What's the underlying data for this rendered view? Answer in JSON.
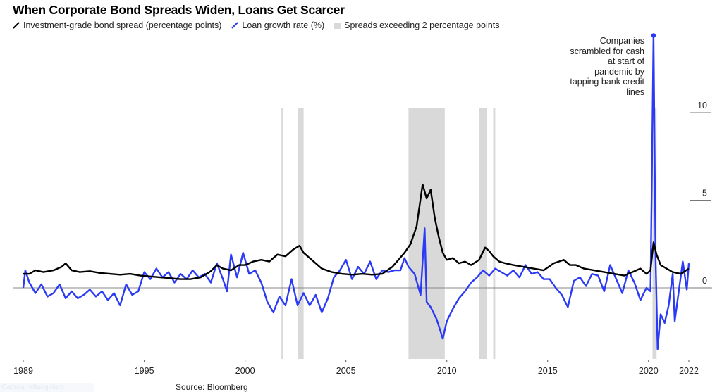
{
  "title": "When Corporate Bond Spreads Widen, Loans Get Scarcer",
  "legend": [
    {
      "label": "Investment-grade bond spread (percentage points)",
      "color": "#000000",
      "icon": "line-slash-icon"
    },
    {
      "label": "Loan growth rate (%)",
      "color": "#2b3af5",
      "icon": "line-slash-icon"
    },
    {
      "label": "Spreads exceeding 2 percentage points",
      "color": "#d9d9d9",
      "icon": "square-icon"
    }
  ],
  "annotation": "Companies scrambled for cash at start of pandemic by tapping bank credit lines",
  "source": "Source: Bloomberg",
  "overlay_label": "Cattura rettangolare",
  "colors": {
    "spread": "#000000",
    "loan": "#2b3af5",
    "band": "#d9d9d9",
    "zero_line": "#888888"
  },
  "axes": {
    "x_ticks": [
      "1989",
      "1995",
      "2000",
      "2005",
      "2010",
      "2015",
      "2020",
      "2022"
    ],
    "y_ticks": [
      "0",
      "5",
      "10"
    ]
  },
  "chart_data": {
    "type": "line",
    "title": "When Corporate Bond Spreads Widen, Loans Get Scarcer",
    "xlabel": "",
    "ylabel": "",
    "xlim": [
      1989,
      2022.2
    ],
    "ylim": [
      -3.6,
      14.6
    ],
    "grid": false,
    "legend_position": "top-left",
    "y_axis_side": "right",
    "x_ticks": [
      1989,
      1995,
      2000,
      2005,
      2010,
      2015,
      2020,
      2022
    ],
    "y_ticks": [
      0,
      5,
      10
    ],
    "shaded_periods": [
      {
        "start": 2001.8,
        "end": 2001.9
      },
      {
        "start": 2002.6,
        "end": 2002.9
      },
      {
        "start": 2008.1,
        "end": 2009.9
      },
      {
        "start": 2011.6,
        "end": 2012.0
      },
      {
        "start": 2012.3,
        "end": 2012.4
      },
      {
        "start": 2020.2,
        "end": 2020.4
      }
    ],
    "series": [
      {
        "name": "Investment-grade bond spread (percentage points)",
        "color": "#000000",
        "x": [
          1989.0,
          1989.3,
          1989.6,
          1990.0,
          1990.5,
          1990.9,
          1991.1,
          1991.4,
          1991.8,
          1992.3,
          1992.8,
          1993.3,
          1993.8,
          1994.3,
          1994.8,
          1995.3,
          1995.8,
          1996.3,
          1996.8,
          1997.3,
          1997.8,
          1998.3,
          1998.6,
          1998.9,
          1999.3,
          1999.7,
          2000.0,
          2000.4,
          2000.8,
          2001.2,
          2001.6,
          2002.0,
          2002.4,
          2002.7,
          2002.9,
          2003.3,
          2003.8,
          2004.3,
          2004.8,
          2005.3,
          2005.8,
          2006.3,
          2006.8,
          2007.3,
          2007.6,
          2007.9,
          2008.2,
          2008.5,
          2008.8,
          2009.0,
          2009.2,
          2009.4,
          2009.6,
          2009.8,
          2010.0,
          2010.3,
          2010.6,
          2010.9,
          2011.2,
          2011.6,
          2011.9,
          2012.1,
          2012.3,
          2012.6,
          2012.9,
          2013.3,
          2013.8,
          2014.3,
          2014.8,
          2015.3,
          2015.8,
          2016.1,
          2016.4,
          2016.8,
          2017.3,
          2017.8,
          2018.3,
          2018.8,
          2019.2,
          2019.6,
          2019.9,
          2020.1,
          2020.25,
          2020.4,
          2020.6,
          2020.9,
          2021.2,
          2021.6,
          2022.0
        ],
        "values": [
          0.8,
          0.8,
          1.0,
          0.9,
          1.0,
          1.2,
          1.4,
          1.0,
          0.9,
          0.95,
          0.85,
          0.8,
          0.75,
          0.8,
          0.7,
          0.65,
          0.6,
          0.55,
          0.5,
          0.5,
          0.6,
          0.95,
          1.3,
          1.1,
          1.0,
          1.3,
          1.3,
          1.5,
          1.6,
          1.5,
          1.9,
          1.8,
          2.2,
          2.4,
          2.0,
          1.6,
          1.1,
          0.9,
          0.8,
          0.75,
          0.8,
          0.75,
          0.8,
          1.2,
          1.6,
          2.0,
          2.5,
          3.5,
          5.9,
          5.1,
          5.6,
          4.0,
          2.9,
          2.0,
          1.6,
          1.7,
          1.4,
          1.5,
          1.3,
          1.6,
          2.3,
          2.1,
          1.8,
          1.5,
          1.4,
          1.3,
          1.2,
          1.1,
          1.0,
          1.4,
          1.6,
          1.3,
          1.3,
          1.1,
          1.0,
          0.9,
          0.8,
          0.7,
          0.9,
          1.1,
          0.8,
          1.0,
          2.6,
          1.9,
          1.3,
          1.1,
          0.9,
          0.8,
          1.1
        ]
      },
      {
        "name": "Loan growth rate (%)",
        "color": "#2b3af5",
        "x": [
          1989.0,
          1989.1,
          1989.3,
          1989.6,
          1989.9,
          1990.2,
          1990.5,
          1990.8,
          1991.1,
          1991.4,
          1991.7,
          1992.0,
          1992.3,
          1992.6,
          1992.9,
          1993.2,
          1993.5,
          1993.8,
          1994.1,
          1994.4,
          1994.7,
          1995.0,
          1995.3,
          1995.6,
          1995.9,
          1996.2,
          1996.5,
          1996.8,
          1997.1,
          1997.4,
          1997.7,
          1998.0,
          1998.3,
          1998.6,
          1998.9,
          1999.1,
          1999.3,
          1999.6,
          1999.9,
          2000.2,
          2000.5,
          2000.8,
          2001.1,
          2001.4,
          2001.7,
          2002.0,
          2002.3,
          2002.6,
          2002.9,
          2003.2,
          2003.5,
          2003.8,
          2004.1,
          2004.4,
          2004.7,
          2005.0,
          2005.3,
          2005.6,
          2005.9,
          2006.2,
          2006.5,
          2006.8,
          2007.1,
          2007.4,
          2007.7,
          2007.9,
          2008.1,
          2008.4,
          2008.7,
          2008.9,
          2009.0,
          2009.2,
          2009.5,
          2009.8,
          2010.0,
          2010.3,
          2010.6,
          2010.9,
          2011.2,
          2011.5,
          2011.8,
          2012.1,
          2012.4,
          2012.7,
          2013.0,
          2013.3,
          2013.6,
          2013.9,
          2014.2,
          2014.5,
          2014.8,
          2015.1,
          2015.4,
          2015.7,
          2016.0,
          2016.3,
          2016.6,
          2016.9,
          2017.2,
          2017.5,
          2017.8,
          2018.1,
          2018.4,
          2018.7,
          2019.0,
          2019.3,
          2019.6,
          2019.9,
          2020.1,
          2020.25,
          2020.35,
          2020.45,
          2020.6,
          2020.8,
          2021.0,
          2021.2,
          2021.3,
          2021.5,
          2021.7,
          2021.9,
          2022.0
        ],
        "values": [
          0.0,
          1.0,
          0.3,
          -0.3,
          0.2,
          -0.5,
          -0.3,
          0.2,
          -0.6,
          -0.2,
          -0.6,
          -0.4,
          -0.1,
          -0.5,
          -0.2,
          -0.7,
          -0.3,
          -1.0,
          0.2,
          -0.4,
          -0.2,
          0.9,
          0.5,
          1.1,
          0.6,
          0.9,
          0.3,
          0.8,
          0.5,
          1.0,
          0.6,
          0.8,
          0.3,
          1.4,
          0.5,
          -0.2,
          1.9,
          0.6,
          2.0,
          0.8,
          1.0,
          0.3,
          -0.8,
          -1.4,
          -0.5,
          -1.0,
          0.5,
          -1.0,
          -0.3,
          -1.0,
          -0.4,
          -1.4,
          -0.6,
          0.6,
          1.0,
          1.6,
          0.5,
          1.2,
          0.8,
          1.5,
          0.5,
          1.0,
          0.9,
          1.0,
          1.0,
          1.7,
          1.2,
          0.8,
          -0.4,
          3.4,
          -0.8,
          -1.1,
          -1.8,
          -2.9,
          -1.9,
          -1.2,
          -0.6,
          -0.2,
          0.3,
          0.6,
          1.0,
          0.7,
          1.1,
          0.9,
          0.7,
          1.0,
          0.6,
          1.3,
          0.8,
          0.9,
          0.5,
          0.5,
          0.0,
          -0.4,
          -1.1,
          0.4,
          0.6,
          0.1,
          0.8,
          0.7,
          -0.2,
          1.3,
          0.5,
          -0.3,
          1.0,
          0.3,
          -0.7,
          0.0,
          -0.2,
          14.4,
          1.8,
          -3.5,
          -1.5,
          -2.0,
          -1.0,
          0.8,
          -1.9,
          -0.2,
          1.5,
          -0.1,
          1.4
        ]
      }
    ]
  }
}
